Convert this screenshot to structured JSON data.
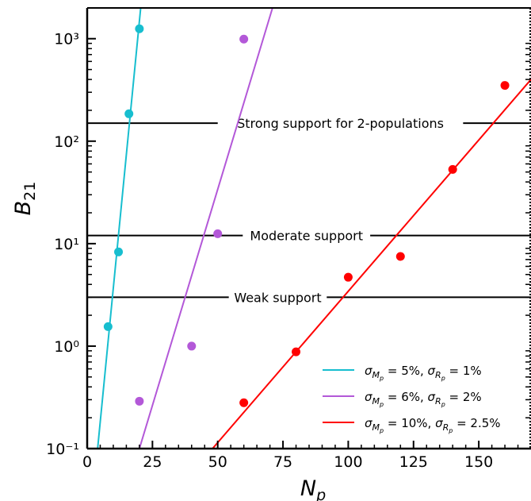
{
  "chart_data": {
    "type": "scatter",
    "title": "",
    "xlabel": "N_p",
    "ylabel": "B_21",
    "xlim": [
      0,
      170
    ],
    "ylim_log10": [
      -1,
      3.3
    ],
    "y_scale": "log",
    "grid": false,
    "x_ticks": [
      {
        "value": 0,
        "label": "0"
      },
      {
        "value": 25,
        "label": "25"
      },
      {
        "value": 50,
        "label": "50"
      },
      {
        "value": 75,
        "label": "75"
      },
      {
        "value": 100,
        "label": "100"
      },
      {
        "value": 125,
        "label": "125"
      },
      {
        "value": 150,
        "label": "150"
      }
    ],
    "y_ticks": [
      {
        "value": 0.1,
        "label": "10⁻¹"
      },
      {
        "value": 1,
        "label": "10⁰"
      },
      {
        "value": 10,
        "label": "10¹"
      },
      {
        "value": 100,
        "label": "10²"
      },
      {
        "value": 1000,
        "label": "10³"
      }
    ],
    "thresholds": [
      {
        "y": 150,
        "label": "Strong support for 2-populations",
        "label_x": 97
      },
      {
        "y": 12,
        "label": "Moderate support",
        "label_x": 84
      },
      {
        "y": 3,
        "label": "Weak support",
        "label_x": 73
      }
    ],
    "series": [
      {
        "name": "σMp = 5%, σRp = 1%",
        "color": "#17becf",
        "points": [
          [
            8,
            1.55
          ],
          [
            12,
            8.3
          ],
          [
            16,
            185
          ],
          [
            20,
            1250
          ]
        ],
        "fit": [
          [
            4,
            0.1
          ],
          [
            20.5,
            2000
          ]
        ]
      },
      {
        "name": "σMp = 6%, σRp = 2%",
        "color": "#b358d8",
        "points": [
          [
            20,
            0.29
          ],
          [
            40,
            1.0
          ],
          [
            50,
            12.5
          ],
          [
            60,
            990
          ]
        ],
        "fit": [
          [
            20,
            0.1
          ],
          [
            71,
            2000
          ]
        ]
      },
      {
        "name": "σMp = 10%, σRp = 2.5%",
        "color": "#ff0000",
        "points": [
          [
            60,
            0.28
          ],
          [
            80,
            0.88
          ],
          [
            100,
            4.7
          ],
          [
            120,
            7.5
          ],
          [
            140,
            53
          ],
          [
            160,
            350
          ]
        ],
        "fit": [
          [
            48,
            0.1
          ],
          [
            170,
            400
          ]
        ]
      }
    ],
    "legend": {
      "placement": "lower-right",
      "entries": [
        {
          "symbol": "σ",
          "sub": "M",
          "subsub": "p",
          "eq1": "= 5%, ",
          "sym2": "σ",
          "sub2": "R",
          "subsub2": "p",
          "eq2": "= 1%"
        },
        {
          "symbol": "σ",
          "sub": "M",
          "subsub": "p",
          "eq1": "= 6%, ",
          "sym2": "σ",
          "sub2": "R",
          "subsub2": "p",
          "eq2": "= 2%"
        },
        {
          "symbol": "σ",
          "sub": "M",
          "subsub": "p",
          "eq1": "= 10%, ",
          "sym2": "σ",
          "sub2": "R",
          "subsub2": "p",
          "eq2": "= 2.5%"
        }
      ]
    }
  }
}
